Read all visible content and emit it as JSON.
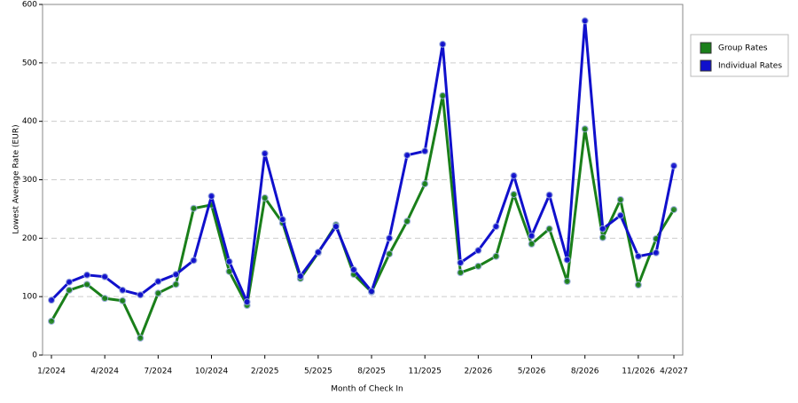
{
  "chart_data": {
    "type": "line",
    "x_label": "Month of Check In",
    "y_label": "Lowest Average Rate (EUR)",
    "categories": [
      "1/2024",
      null,
      null,
      "4/2024",
      null,
      null,
      "7/2024",
      null,
      null,
      "10/2024",
      null,
      null,
      "2/2025",
      null,
      null,
      "5/2025",
      null,
      null,
      "8/2025",
      null,
      null,
      "11/2025",
      null,
      null,
      "2/2026",
      null,
      null,
      "5/2026",
      null,
      null,
      "8/2026",
      null,
      null,
      "11/2026",
      null,
      "4/2027"
    ],
    "series": [
      {
        "name": "Group Rates",
        "color": "#1a7f1a",
        "values": [
          58,
          111,
          121,
          97,
          93,
          29,
          106,
          121,
          251,
          257,
          143,
          85,
          269,
          226,
          131,
          175,
          223,
          138,
          108,
          173,
          229,
          293,
          444,
          141,
          152,
          169,
          275,
          190,
          216,
          126,
          387,
          201,
          266,
          120,
          199,
          249
        ]
      },
      {
        "name": "Individual Rates",
        "color": "#1010cc",
        "values": [
          94,
          125,
          137,
          134,
          111,
          103,
          126,
          138,
          162,
          272,
          160,
          91,
          345,
          232,
          135,
          176,
          220,
          146,
          109,
          200,
          342,
          349,
          532,
          158,
          179,
          220,
          307,
          204,
          274,
          163,
          572,
          216,
          239,
          169,
          175,
          324
        ]
      }
    ],
    "ylim": [
      0,
      600
    ],
    "yticks": [
      0,
      100,
      200,
      300,
      400,
      500,
      600
    ],
    "grid": true,
    "legend": "right"
  }
}
